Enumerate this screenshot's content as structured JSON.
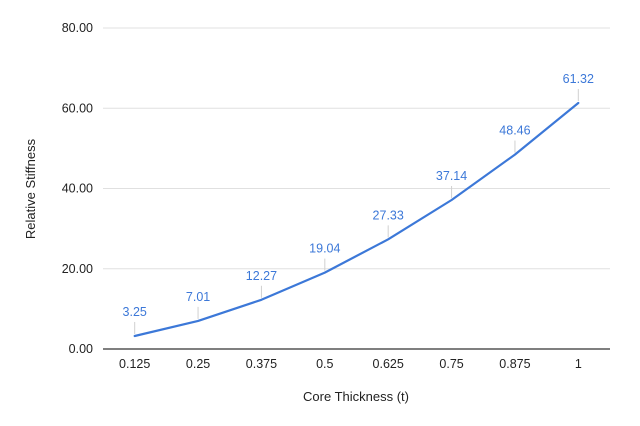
{
  "chart_data": {
    "type": "line",
    "title": "",
    "xlabel": "Core Thickness (t)",
    "ylabel": "Relative Stiffness",
    "categories": [
      "0.125",
      "0.25",
      "0.375",
      "0.5",
      "0.625",
      "0.75",
      "0.875",
      "1"
    ],
    "series": [
      {
        "values": [
          3.25,
          7.01,
          12.27,
          19.04,
          27.33,
          37.14,
          48.46,
          61.32
        ],
        "labels": [
          "3.25",
          "7.01",
          "12.27",
          "19.04",
          "27.33",
          "37.14",
          "48.46",
          "61.32"
        ]
      }
    ],
    "ylim": [
      0,
      80
    ],
    "yticks": [
      "0.00",
      "20.00",
      "40.00",
      "60.00",
      "80.00"
    ],
    "grid": true,
    "legend": "none",
    "colors": {
      "line": "#3c78d8",
      "grid": "#e0e0e0",
      "axis": "#333333",
      "label": "#3c78d8"
    }
  }
}
